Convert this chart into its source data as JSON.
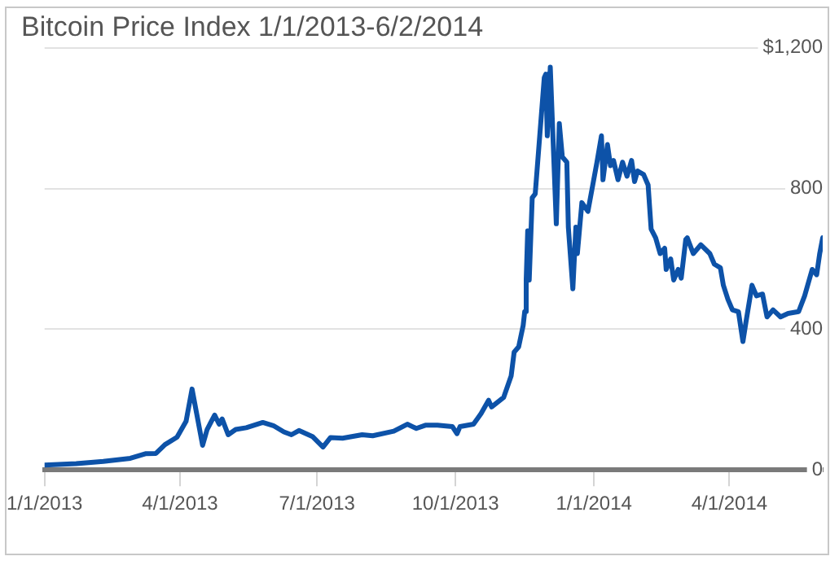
{
  "chart_data": {
    "type": "line",
    "title": "Bitcoin Price Index 1/1/2013-6/2/2014",
    "x": [
      "2013-01-01",
      "2013-01-22",
      "2013-02-09",
      "2013-02-27",
      "2013-03-09",
      "2013-03-16",
      "2013-03-22",
      "2013-03-30",
      "2013-04-05",
      "2013-04-09",
      "2013-04-16",
      "2013-04-19",
      "2013-04-24",
      "2013-04-27",
      "2013-04-29",
      "2013-05-03",
      "2013-05-08",
      "2013-05-15",
      "2013-05-26",
      "2013-06-02",
      "2013-06-09",
      "2013-06-14",
      "2013-06-19",
      "2013-06-28",
      "2013-07-05",
      "2013-07-10",
      "2013-07-18",
      "2013-07-31",
      "2013-08-07",
      "2013-08-21",
      "2013-08-30",
      "2013-09-05",
      "2013-09-11",
      "2013-09-19",
      "2013-09-29",
      "2013-10-02",
      "2013-10-04",
      "2013-10-13",
      "2013-10-18",
      "2013-10-23",
      "2013-10-25",
      "2013-11-02",
      "2013-11-07",
      "2013-11-09",
      "2013-11-12",
      "2013-11-15",
      "2013-11-16",
      "2013-11-17",
      "2013-11-18",
      "2013-11-19",
      "2013-11-21",
      "2013-11-23",
      "2013-11-26",
      "2013-11-29",
      "2013-11-30",
      "2013-12-01",
      "2013-12-03",
      "2013-12-07",
      "2013-12-09",
      "2013-12-11",
      "2013-12-14",
      "2013-12-15",
      "2013-12-18",
      "2013-12-20",
      "2013-12-21",
      "2013-12-24",
      "2013-12-28",
      "2013-12-31",
      "2014-01-03",
      "2014-01-06",
      "2014-01-07",
      "2014-01-10",
      "2014-01-12",
      "2014-01-14",
      "2014-01-17",
      "2014-01-20",
      "2014-01-23",
      "2014-01-26",
      "2014-01-28",
      "2014-01-30",
      "2014-02-03",
      "2014-02-06",
      "2014-02-08",
      "2014-02-11",
      "2014-02-14",
      "2014-02-17",
      "2014-02-18",
      "2014-02-21",
      "2014-02-23",
      "2014-02-26",
      "2014-02-28",
      "2014-03-03",
      "2014-03-04",
      "2014-03-08",
      "2014-03-13",
      "2014-03-19",
      "2014-03-22",
      "2014-03-26",
      "2014-03-28",
      "2014-03-31",
      "2014-04-03",
      "2014-04-07",
      "2014-04-10",
      "2014-04-12",
      "2014-04-16",
      "2014-04-19",
      "2014-04-23",
      "2014-04-26",
      "2014-04-30",
      "2014-05-05",
      "2014-05-10",
      "2014-05-17",
      "2014-05-21",
      "2014-05-26",
      "2014-05-29",
      "2014-05-31",
      "2014-06-02"
    ],
    "values": [
      14,
      18,
      24,
      33,
      46,
      47,
      72,
      93,
      138,
      230,
      70,
      115,
      156,
      130,
      145,
      100,
      115,
      120,
      135,
      126,
      108,
      100,
      112,
      95,
      65,
      92,
      90,
      100,
      97,
      110,
      130,
      118,
      127,
      127,
      123,
      103,
      123,
      130,
      160,
      198,
      179,
      206,
      267,
      335,
      350,
      411,
      450,
      540,
      680,
      540,
      774,
      785,
      950,
      1115,
      1125,
      950,
      1145,
      700,
      985,
      890,
      875,
      690,
      515,
      690,
      615,
      760,
      735,
      805,
      875,
      950,
      825,
      925,
      865,
      880,
      825,
      875,
      835,
      880,
      820,
      850,
      840,
      810,
      685,
      660,
      615,
      630,
      570,
      600,
      540,
      570,
      545,
      655,
      660,
      615,
      640,
      615,
      585,
      575,
      525,
      485,
      455,
      450,
      365,
      420,
      525,
      495,
      500,
      435,
      455,
      435,
      445,
      450,
      495,
      570,
      555,
      615,
      660
    ],
    "color": "#0d52a8",
    "xlim": [
      "2013-01-01",
      "2014-06-02"
    ],
    "xticks": [
      {
        "value": "2013-01-01",
        "label": "1/1/2013"
      },
      {
        "value": "2013-04-01",
        "label": "4/1/2013"
      },
      {
        "value": "2013-07-01",
        "label": "7/1/2013"
      },
      {
        "value": "2013-10-01",
        "label": "10/1/2013"
      },
      {
        "value": "2014-01-01",
        "label": "1/1/2014"
      },
      {
        "value": "2014-04-01",
        "label": "4/1/2014"
      }
    ],
    "ylim": [
      0,
      1200
    ],
    "yticks": [
      0,
      400,
      800,
      {
        "value": 1200,
        "label": "$1,200"
      }
    ],
    "grid": "y"
  }
}
